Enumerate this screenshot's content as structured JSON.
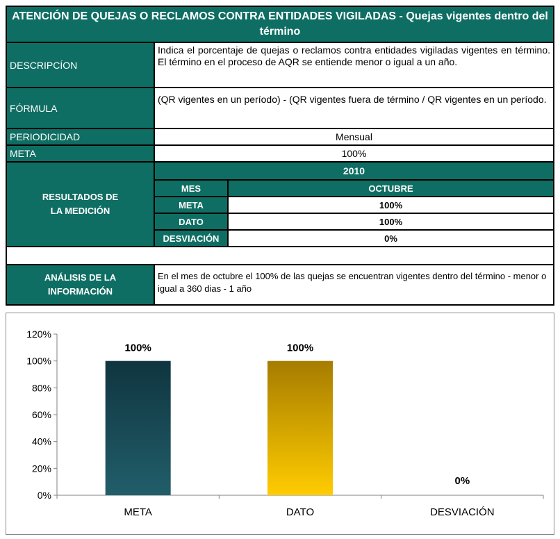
{
  "table": {
    "title": "ATENCIÓN DE QUEJAS O RECLAMOS CONTRA ENTIDADES VIGILADAS - Quejas vigentes dentro del término",
    "descripcion_label": "DESCRIPCÍON",
    "descripcion_text": "Indica el porcentaje de quejas o reclamos contra entidades vigiladas vigentes en término. El término en el proceso de AQR se entiende menor o igual a un año.",
    "formula_label": "FÓRMULA",
    "formula_text": "(QR vigentes en un período) - (QR vigentes fuera de término / QR vigentes en un período.",
    "periodicidad_label": "PERIODICIDAD",
    "periodicidad_value": "Mensual",
    "meta_label": "META",
    "meta_value": "100%",
    "resultados_label_1": "RESULTADOS DE",
    "resultados_label_2": "LA MEDICIÓN",
    "year": "2010",
    "mes_label": "MES",
    "mes_value": "OCTUBRE",
    "rows": [
      {
        "label": "META",
        "value": "100%"
      },
      {
        "label": "DATO",
        "value": "100%"
      },
      {
        "label": "DESVIACIÓN",
        "value": "0%"
      }
    ],
    "analisis_label_1": "ANÁLISIS DE LA",
    "analisis_label_2": "INFORMACIÓN",
    "analisis_text": "En el mes de octubre el 100% de las quejas se encuentran vigentes dentro del término - menor o igual a 360 dias - 1 año"
  },
  "chart_data": {
    "type": "bar",
    "categories": [
      "META",
      "DATO",
      "DESVIACIÓN"
    ],
    "values": [
      100,
      100,
      0
    ],
    "data_labels": [
      "100%",
      "100%",
      "0%"
    ],
    "ylim": [
      0,
      120
    ],
    "yticks": [
      "0%",
      "20%",
      "40%",
      "60%",
      "80%",
      "100%",
      "120%"
    ],
    "ytick_values": [
      0,
      20,
      40,
      60,
      80,
      100,
      120
    ],
    "grid": false,
    "colors": [
      "#1c5862",
      "#f2c200",
      "#999999"
    ]
  }
}
